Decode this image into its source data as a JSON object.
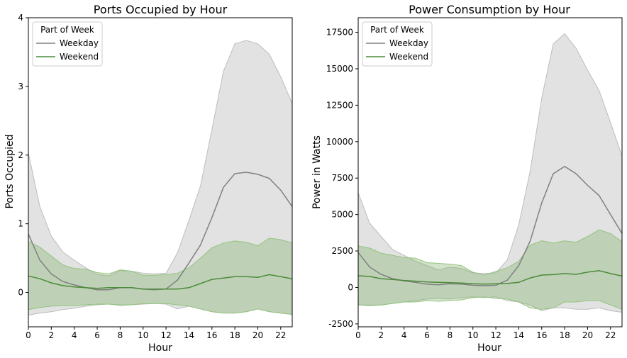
{
  "chart_data": [
    {
      "type": "line",
      "title": "Ports Occupied by Hour",
      "xlabel": "Hour",
      "ylabel": "Ports Occupied",
      "xlim": [
        0,
        23
      ],
      "ylim": [
        -0.5,
        4
      ],
      "xticks": [
        0,
        2,
        4,
        6,
        8,
        10,
        12,
        14,
        16,
        18,
        20,
        22
      ],
      "yticks": [
        0,
        1,
        2,
        3,
        4
      ],
      "legend": {
        "title": "Part of Week",
        "position": "top-left"
      },
      "x": [
        0,
        1,
        2,
        3,
        4,
        5,
        6,
        7,
        8,
        9,
        10,
        11,
        12,
        13,
        14,
        15,
        16,
        17,
        18,
        19,
        20,
        21,
        22,
        23
      ],
      "series": [
        {
          "name": "Weekday",
          "color": "#808080",
          "values": [
            0.85,
            0.47,
            0.27,
            0.16,
            0.11,
            0.07,
            0.04,
            0.04,
            0.07,
            0.07,
            0.05,
            0.04,
            0.05,
            0.18,
            0.43,
            0.69,
            1.09,
            1.53,
            1.73,
            1.75,
            1.72,
            1.66,
            1.49,
            1.25
          ],
          "lower": [
            -0.33,
            -0.3,
            -0.28,
            -0.25,
            -0.23,
            -0.2,
            -0.18,
            -0.17,
            -0.19,
            -0.18,
            -0.17,
            -0.16,
            -0.17,
            -0.24,
            -0.2,
            -0.24,
            -0.28,
            -0.3,
            -0.3,
            -0.28,
            -0.24,
            -0.28,
            -0.3,
            -0.32
          ],
          "upper": [
            2.03,
            1.25,
            0.82,
            0.59,
            0.47,
            0.36,
            0.26,
            0.24,
            0.32,
            0.31,
            0.28,
            0.27,
            0.28,
            0.58,
            1.05,
            1.55,
            2.37,
            3.22,
            3.62,
            3.67,
            3.62,
            3.47,
            3.14,
            2.75
          ]
        },
        {
          "name": "Weekend",
          "color": "#4c8a3a",
          "values": [
            0.24,
            0.2,
            0.14,
            0.1,
            0.08,
            0.07,
            0.06,
            0.07,
            0.07,
            0.07,
            0.05,
            0.05,
            0.05,
            0.05,
            0.07,
            0.13,
            0.19,
            0.21,
            0.23,
            0.23,
            0.22,
            0.26,
            0.23,
            0.2
          ],
          "lower": [
            -0.25,
            -0.22,
            -0.2,
            -0.19,
            -0.19,
            -0.18,
            -0.17,
            -0.17,
            -0.18,
            -0.18,
            -0.16,
            -0.16,
            -0.16,
            -0.18,
            -0.2,
            -0.24,
            -0.28,
            -0.3,
            -0.3,
            -0.28,
            -0.24,
            -0.28,
            -0.3,
            -0.32
          ],
          "upper": [
            0.74,
            0.66,
            0.53,
            0.4,
            0.35,
            0.34,
            0.29,
            0.27,
            0.33,
            0.31,
            0.25,
            0.25,
            0.26,
            0.28,
            0.36,
            0.5,
            0.65,
            0.72,
            0.75,
            0.73,
            0.68,
            0.79,
            0.77,
            0.72
          ]
        }
      ]
    },
    {
      "type": "line",
      "title": "Power Consumption by Hour",
      "xlabel": "Hour",
      "ylabel": "Power in Watts",
      "xlim": [
        0,
        23
      ],
      "ylim": [
        -2700,
        18500
      ],
      "xticks": [
        0,
        2,
        4,
        6,
        8,
        10,
        12,
        14,
        16,
        18,
        20,
        22
      ],
      "yticks": [
        -2500,
        0,
        2500,
        5000,
        7500,
        10000,
        12500,
        15000,
        17500
      ],
      "legend": {
        "title": "Part of Week",
        "position": "top-left"
      },
      "x": [
        0,
        1,
        2,
        3,
        4,
        5,
        6,
        7,
        8,
        9,
        10,
        11,
        12,
        13,
        14,
        15,
        16,
        17,
        18,
        19,
        20,
        21,
        22,
        23
      ],
      "series": [
        {
          "name": "Weekday",
          "color": "#808080",
          "values": [
            2400,
            1400,
            900,
            600,
            450,
            350,
            220,
            180,
            250,
            230,
            150,
            120,
            150,
            500,
            1500,
            3200,
            5800,
            7800,
            8300,
            7800,
            7000,
            6300,
            5000,
            3700
          ],
          "lower": [
            -1200,
            -1200,
            -1200,
            -1100,
            -1000,
            -900,
            -800,
            -750,
            -800,
            -700,
            -650,
            -700,
            -650,
            -900,
            -1000,
            -1200,
            -1600,
            -1400,
            -1400,
            -1500,
            -1500,
            -1400,
            -1600,
            -1700
          ],
          "upper": [
            6500,
            4400,
            3500,
            2600,
            2200,
            1800,
            1500,
            1200,
            1400,
            1300,
            1000,
            950,
            1000,
            1900,
            4300,
            8000,
            13000,
            16700,
            17400,
            16400,
            14900,
            13500,
            11300,
            9000
          ]
        },
        {
          "name": "Weekend",
          "color": "#4c8a3a",
          "values": [
            800,
            750,
            600,
            550,
            480,
            430,
            380,
            350,
            330,
            300,
            250,
            230,
            250,
            270,
            350,
            650,
            850,
            880,
            950,
            900,
            1050,
            1150,
            950,
            780
          ],
          "lower": [
            -1200,
            -1250,
            -1200,
            -1100,
            -1000,
            -1000,
            -900,
            -950,
            -900,
            -850,
            -700,
            -650,
            -750,
            -800,
            -1000,
            -1400,
            -1500,
            -1400,
            -1000,
            -1000,
            -900,
            -900,
            -1200,
            -1500
          ],
          "upper": [
            2850,
            2700,
            2350,
            2200,
            2050,
            2000,
            1700,
            1650,
            1600,
            1500,
            1050,
            850,
            1100,
            1350,
            1800,
            2900,
            3200,
            3050,
            3200,
            3100,
            3500,
            3950,
            3700,
            3150
          ]
        }
      ]
    }
  ]
}
